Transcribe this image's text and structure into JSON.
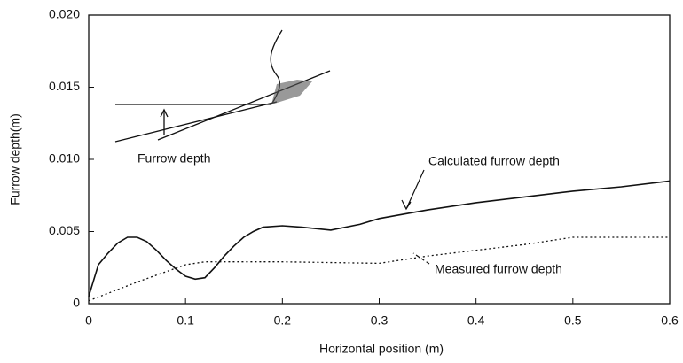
{
  "chart_data": {
    "type": "line",
    "xlabel": "Horizontal position (m)",
    "ylabel": "Furrow depth(m)",
    "xlim": [
      0,
      0.6
    ],
    "ylim": [
      0,
      0.02
    ],
    "xticks": [
      0,
      0.1,
      0.2,
      0.3,
      0.4,
      0.5,
      0.6
    ],
    "yticks": [
      0,
      0.005,
      {
        "value": 0.01,
        "label": "0.010"
      },
      0.015,
      {
        "value": 0.02,
        "label": "0.020"
      }
    ],
    "series": [
      {
        "name": "Calculated furrow depth",
        "color": "#111111",
        "style": "solid",
        "x": [
          0,
          0.01,
          0.02,
          0.03,
          0.04,
          0.05,
          0.06,
          0.07,
          0.08,
          0.09,
          0.1,
          0.11,
          0.12,
          0.13,
          0.14,
          0.15,
          0.16,
          0.17,
          0.18,
          0.2,
          0.22,
          0.25,
          0.28,
          0.3,
          0.35,
          0.4,
          0.45,
          0.5,
          0.55,
          0.6
        ],
        "values": [
          0.0005,
          0.0027,
          0.0035,
          0.0042,
          0.0046,
          0.0046,
          0.0043,
          0.0037,
          0.003,
          0.0024,
          0.0019,
          0.0017,
          0.0018,
          0.0025,
          0.0033,
          0.004,
          0.0046,
          0.005,
          0.0053,
          0.0054,
          0.0053,
          0.0051,
          0.0055,
          0.0059,
          0.0065,
          0.007,
          0.0074,
          0.0078,
          0.0081,
          0.0085
        ]
      },
      {
        "name": "Measured furrow depth",
        "color": "#111111",
        "style": "dotted",
        "x": [
          0,
          0.05,
          0.1,
          0.12,
          0.2,
          0.3,
          0.35,
          0.4,
          0.45,
          0.5,
          0.55,
          0.6
        ],
        "values": [
          0.0002,
          0.0015,
          0.0027,
          0.0029,
          0.0029,
          0.0028,
          0.0033,
          0.0037,
          0.0041,
          0.0046,
          0.0046,
          0.0046
        ]
      }
    ],
    "annotations": [
      "Furrow depth"
    ]
  }
}
